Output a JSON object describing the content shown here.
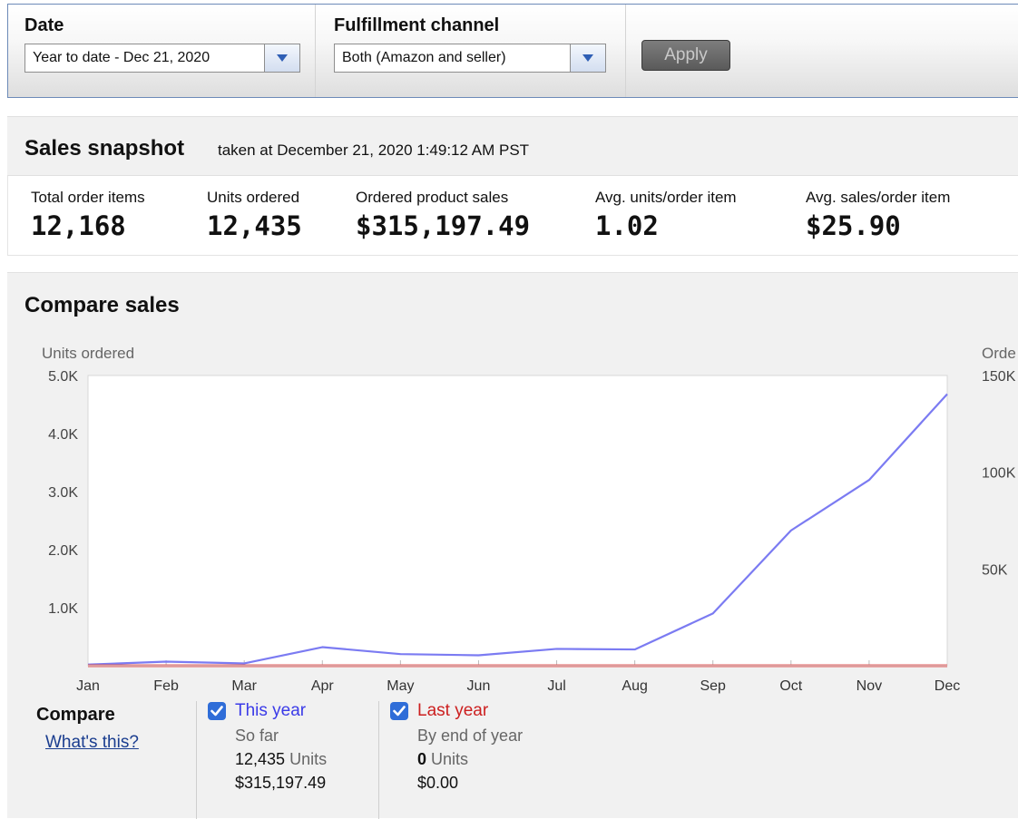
{
  "filters": {
    "date": {
      "label": "Date",
      "value": "Year to date - Dec 21, 2020"
    },
    "channel": {
      "label": "Fulfillment channel",
      "value": "Both (Amazon and seller)"
    },
    "apply_label": "Apply"
  },
  "snapshot": {
    "title": "Sales snapshot",
    "subtitle": "taken at December 21, 2020 1:49:12 AM PST",
    "metrics": [
      {
        "label": "Total order items",
        "value": "12,168"
      },
      {
        "label": "Units ordered",
        "value": "12,435"
      },
      {
        "label": "Ordered product sales",
        "value": "$315,197.49"
      },
      {
        "label": "Avg. units/order item",
        "value": "1.02"
      },
      {
        "label": "Avg. sales/order item",
        "value": "$25.90"
      }
    ]
  },
  "compare": {
    "title": "Compare sales",
    "legend_title": "Compare",
    "whats_this": "What's this?",
    "this_year": {
      "name": "This year",
      "sub": "So far",
      "units": "12,435",
      "units_suffix": "Units",
      "sales": "$315,197.49",
      "color": "#7b7bf2"
    },
    "last_year": {
      "name": "Last year",
      "sub": "By end of year",
      "units": "0",
      "units_suffix": "Units",
      "sales": "$0.00",
      "color": "#cc1f1f"
    }
  },
  "chart_data": {
    "type": "line",
    "ylabel": "Units ordered",
    "y2label": "Orde",
    "categories": [
      "Jan",
      "Feb",
      "Mar",
      "Apr",
      "May",
      "Jun",
      "Jul",
      "Aug",
      "Sep",
      "Oct",
      "Nov",
      "Dec"
    ],
    "yticks": [
      "1.0K",
      "2.0K",
      "3.0K",
      "4.0K",
      "5.0K"
    ],
    "y2ticks": [
      "50K",
      "100K",
      "150K"
    ],
    "ylim": [
      0,
      5000
    ],
    "y2lim": [
      0,
      150000
    ],
    "grid": false,
    "series": [
      {
        "name": "This year",
        "color": "#7b7bf2",
        "values": [
          20,
          70,
          40,
          320,
          200,
          180,
          290,
          280,
          900,
          2330,
          3200,
          4680
        ]
      },
      {
        "name": "Last year",
        "color": "#e25d5d",
        "values": [
          0,
          0,
          0,
          0,
          0,
          0,
          0,
          0,
          0,
          0,
          0,
          0
        ]
      }
    ]
  }
}
